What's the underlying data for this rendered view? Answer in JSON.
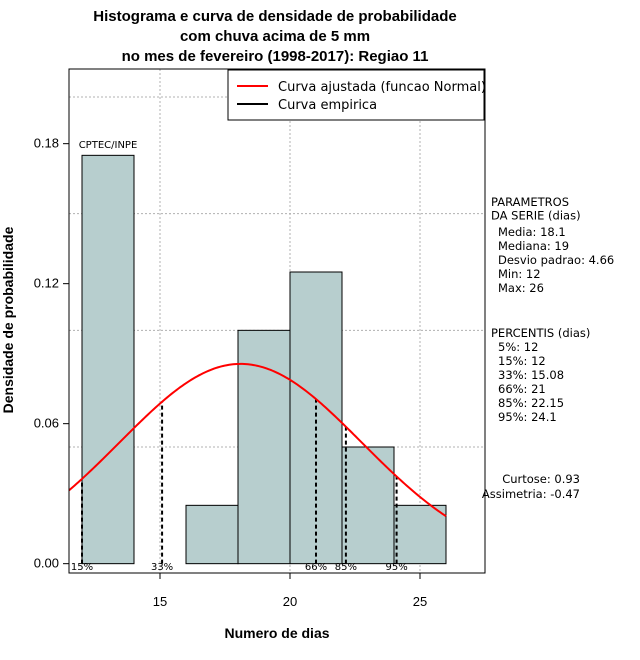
{
  "chart_data": {
    "type": "histogram",
    "title_lines": [
      "Histograma e curva de densidade de probabilidade",
      "com chuva acima de 5 mm",
      "no mes de fevereiro (1998-2017): Regiao 11"
    ],
    "xlabel": "Numero de dias",
    "ylabel": "Densidade de probabilidade",
    "xlim": [
      11.5,
      27.5
    ],
    "ylim": [
      -0.004,
      0.212
    ],
    "x_ticks": [
      15,
      20,
      25
    ],
    "x_tick_labels": [
      "15",
      "20",
      "25"
    ],
    "y_ticks": [
      0.0,
      0.06,
      0.12,
      0.18
    ],
    "y_tick_labels": [
      "0.00",
      "0.06",
      "0.12",
      "0.18"
    ],
    "bars": [
      {
        "x0": 12,
        "x1": 14,
        "density": 0.175
      },
      {
        "x0": 14,
        "x1": 16,
        "density": 0.0
      },
      {
        "x0": 16,
        "x1": 18,
        "density": 0.025
      },
      {
        "x0": 18,
        "x1": 20,
        "density": 0.1
      },
      {
        "x0": 20,
        "x1": 22,
        "density": 0.125
      },
      {
        "x0": 22,
        "x1": 24,
        "density": 0.05
      },
      {
        "x0": 24,
        "x1": 26,
        "density": 0.025
      }
    ],
    "bar_color": "#b7cece",
    "normal_curve": {
      "mean": 18.1,
      "sd": 4.66,
      "x_range": [
        11.5,
        26
      ],
      "color": "#ff0000"
    },
    "percentile_lines": [
      {
        "x": 12,
        "label": "15%"
      },
      {
        "x": 15.08,
        "label": "33%"
      },
      {
        "x": 21,
        "label": "66%"
      },
      {
        "x": 22.15,
        "label": "85%"
      },
      {
        "x": 24.1,
        "label": "95%"
      }
    ],
    "grid_x": [
      15,
      20,
      25
    ],
    "grid_y": [
      0.05,
      0.1,
      0.15,
      0.2
    ],
    "legend": [
      {
        "label": "Curva ajustada (funcao Normal)",
        "color": "#ff0000"
      },
      {
        "label": "Curva empirica",
        "color": "#000000"
      }
    ],
    "annotation": "CPTEC/INPE",
    "parametros": {
      "heading": [
        "PARAMETROS",
        "DA SERIE (dias)"
      ],
      "lines": [
        "Media: 18.1",
        "Mediana: 19",
        "Desvio padrao: 4.66",
        "Min: 12",
        "Max: 26"
      ]
    },
    "percentis": {
      "heading": "PERCENTIS (dias)",
      "lines": [
        "5%: 12",
        "15%: 12",
        "33%: 15.08",
        "66%: 21",
        "85%: 22.15",
        "95%: 24.1"
      ]
    },
    "shape_stats": [
      "Curtose: 0.93",
      "Assimetria: -0.47"
    ]
  }
}
